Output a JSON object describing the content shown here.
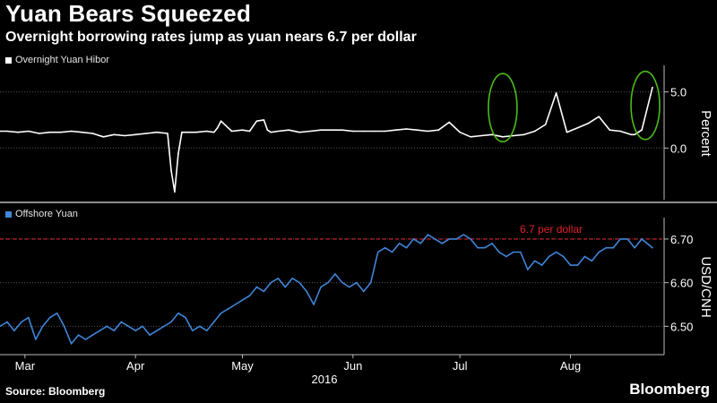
{
  "header": {
    "title": "Yuan Bears Squeezed",
    "subtitle": "Overnight borrowing rates jump as yuan nears 6.7 per dollar"
  },
  "footer": {
    "source": "Source: Bloomberg",
    "brand": "Bloomberg"
  },
  "colors": {
    "hibor": "#ffffff",
    "yuan": "#3f86d9",
    "threshold": "#e0212c",
    "highlight": "#4cbb17",
    "grid": "#555555"
  },
  "chart_data": [
    {
      "type": "line",
      "legend": "Overnight Yuan Hibor",
      "ylabel": "Percent",
      "y_ticks": [
        "5.0",
        "0.0"
      ],
      "y_tick_values": [
        5,
        0
      ],
      "ylim": [
        -4.6,
        7.2
      ],
      "xlim": [
        0,
        183
      ],
      "grid": "horizontal dotted",
      "annotations": [
        "circle around Jul spike",
        "circle around late Aug spike"
      ],
      "series": [
        {
          "x": [
            0,
            2,
            5,
            8,
            11,
            14,
            17,
            20,
            23,
            26,
            29,
            32,
            35,
            38,
            41,
            44,
            47,
            48,
            49,
            50,
            51,
            52,
            55,
            58,
            60,
            61,
            62,
            65,
            68,
            70,
            72,
            74,
            75,
            76,
            78,
            81,
            84,
            87,
            90,
            93,
            96,
            99,
            102,
            105,
            108,
            111,
            114,
            117,
            120,
            123,
            126,
            129,
            132,
            135,
            138,
            141,
            144,
            147,
            150,
            153,
            156,
            159,
            162,
            165,
            168,
            171,
            174,
            177,
            178,
            179,
            180,
            183
          ],
          "y": [
            1.5,
            1.5,
            1.4,
            1.5,
            1.3,
            1.4,
            1.4,
            1.5,
            1.4,
            1.3,
            1.0,
            1.2,
            1.1,
            1.2,
            1.3,
            1.4,
            1.3,
            -2.0,
            -3.9,
            -0.5,
            1.4,
            1.4,
            1.4,
            1.5,
            1.4,
            1.8,
            2.4,
            1.5,
            1.6,
            1.5,
            2.4,
            2.5,
            1.6,
            1.4,
            1.5,
            1.6,
            1.4,
            1.5,
            1.6,
            1.6,
            1.6,
            1.5,
            1.5,
            1.5,
            1.5,
            1.6,
            1.7,
            1.6,
            1.5,
            1.6,
            2.3,
            1.4,
            1.0,
            1.1,
            1.2,
            1.0,
            1.1,
            1.2,
            1.5,
            2.1,
            4.9,
            1.4,
            1.8,
            2.2,
            2.8,
            1.6,
            1.5,
            1.2,
            1.2,
            1.4,
            1.6,
            5.4
          ]
        }
      ]
    },
    {
      "type": "line",
      "legend": "Offshore Yuan",
      "ylabel": "USD/CNH",
      "y_ticks": [
        "6.70",
        "6.60",
        "6.50"
      ],
      "y_tick_values": [
        6.7,
        6.6,
        6.5
      ],
      "ylim": [
        6.435,
        6.745
      ],
      "xlim": [
        0,
        183
      ],
      "x_ticks": [
        "Mar",
        "Apr",
        "May",
        "Jun",
        "Jul",
        "Aug"
      ],
      "x_tick_values": [
        7,
        38,
        68,
        99,
        129,
        160
      ],
      "x_group_label": "2016",
      "reference_line": {
        "value": 6.7,
        "label": "6.7 per dollar"
      },
      "series": [
        {
          "x": [
            0,
            2,
            4,
            6,
            8,
            10,
            12,
            14,
            16,
            18,
            20,
            22,
            24,
            26,
            28,
            30,
            32,
            34,
            36,
            38,
            40,
            42,
            44,
            46,
            48,
            50,
            52,
            54,
            56,
            58,
            60,
            62,
            64,
            66,
            68,
            70,
            72,
            74,
            76,
            78,
            80,
            82,
            84,
            86,
            88,
            90,
            92,
            94,
            96,
            98,
            100,
            102,
            104,
            106,
            108,
            110,
            112,
            114,
            116,
            118,
            120,
            122,
            124,
            126,
            128,
            130,
            132,
            134,
            136,
            138,
            140,
            142,
            144,
            146,
            148,
            150,
            152,
            154,
            156,
            158,
            160,
            162,
            164,
            166,
            168,
            170,
            172,
            174,
            176,
            178,
            180,
            183
          ],
          "y": [
            6.5,
            6.51,
            6.49,
            6.51,
            6.52,
            6.47,
            6.5,
            6.52,
            6.53,
            6.5,
            6.46,
            6.48,
            6.47,
            6.48,
            6.49,
            6.5,
            6.49,
            6.51,
            6.5,
            6.49,
            6.5,
            6.48,
            6.49,
            6.5,
            6.51,
            6.53,
            6.52,
            6.49,
            6.5,
            6.49,
            6.51,
            6.53,
            6.54,
            6.55,
            6.56,
            6.57,
            6.59,
            6.58,
            6.6,
            6.61,
            6.59,
            6.61,
            6.6,
            6.58,
            6.55,
            6.59,
            6.6,
            6.62,
            6.6,
            6.59,
            6.6,
            6.58,
            6.6,
            6.67,
            6.68,
            6.67,
            6.69,
            6.68,
            6.7,
            6.69,
            6.71,
            6.7,
            6.69,
            6.7,
            6.7,
            6.71,
            6.7,
            6.68,
            6.68,
            6.69,
            6.67,
            6.66,
            6.67,
            6.67,
            6.63,
            6.65,
            6.64,
            6.66,
            6.67,
            6.66,
            6.64,
            6.64,
            6.66,
            6.65,
            6.67,
            6.68,
            6.68,
            6.7,
            6.7,
            6.68,
            6.7,
            6.68
          ]
        }
      ]
    }
  ]
}
